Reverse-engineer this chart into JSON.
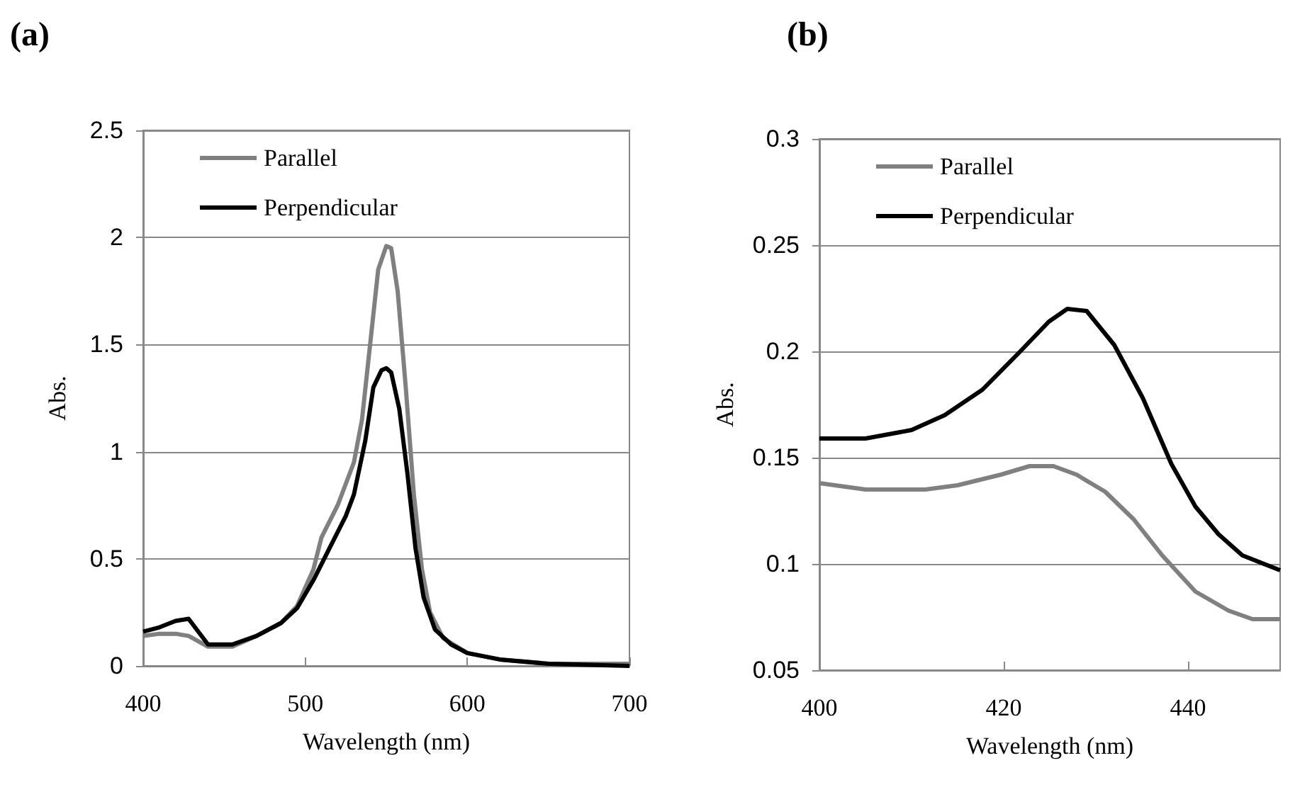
{
  "chart_data": [
    {
      "type": "line",
      "title": "(a)",
      "xlabel": "Wavelength (nm)",
      "ylabel": "Abs.",
      "xlim": [
        400,
        700
      ],
      "xticks": [
        400,
        500,
        600,
        700
      ],
      "ylim": [
        0,
        2.5
      ],
      "yticks": [
        0,
        0.5,
        1,
        1.5,
        2,
        2.5
      ],
      "grid": "y",
      "legend": "top left",
      "marker": "none",
      "line_style": "solid",
      "series": [
        {
          "name": "Parallel",
          "color": "#808080",
          "x": [
            400,
            410,
            420,
            428,
            440,
            455,
            470,
            485,
            495,
            505,
            510,
            520,
            530,
            535,
            540,
            545,
            550,
            553,
            557,
            562,
            567,
            572,
            577,
            585,
            600,
            620,
            650,
            700
          ],
          "values": [
            0.14,
            0.15,
            0.15,
            0.14,
            0.09,
            0.09,
            0.14,
            0.2,
            0.28,
            0.45,
            0.6,
            0.75,
            0.95,
            1.15,
            1.5,
            1.85,
            1.96,
            1.95,
            1.75,
            1.3,
            0.8,
            0.45,
            0.25,
            0.13,
            0.06,
            0.03,
            0.01,
            0.01
          ]
        },
        {
          "name": "Perpendicular",
          "color": "#000000",
          "x": [
            400,
            410,
            420,
            428,
            440,
            455,
            470,
            485,
            495,
            505,
            515,
            525,
            530,
            537,
            542,
            547,
            550,
            553,
            558,
            563,
            568,
            573,
            580,
            590,
            600,
            620,
            650,
            700
          ],
          "values": [
            0.16,
            0.18,
            0.21,
            0.22,
            0.1,
            0.1,
            0.14,
            0.2,
            0.27,
            0.4,
            0.55,
            0.7,
            0.8,
            1.05,
            1.3,
            1.38,
            1.39,
            1.37,
            1.2,
            0.9,
            0.55,
            0.32,
            0.17,
            0.1,
            0.06,
            0.03,
            0.01,
            0
          ]
        }
      ]
    },
    {
      "type": "line",
      "title": "(b)",
      "xlabel": "Wavelength (nm)",
      "ylabel": "Abs.",
      "xlim": [
        400,
        450
      ],
      "xticks": [
        400,
        420,
        440
      ],
      "ylim": [
        0.05,
        0.3
      ],
      "yticks": [
        0.05,
        0.1,
        0.15,
        0.2,
        0.25,
        0.3
      ],
      "grid": "y",
      "legend": "top left",
      "marker": "none",
      "line_style": "solid",
      "series": [
        {
          "name": "Parallel",
          "color": "#808080",
          "x": [
            400,
            405,
            411.5,
            415,
            419.7,
            422.8,
            425.4,
            427.9,
            431,
            434.1,
            437.2,
            440.8,
            444.4,
            447,
            450
          ],
          "values": [
            0.138,
            0.135,
            0.135,
            0.137,
            0.142,
            0.146,
            0.146,
            0.142,
            0.134,
            0.121,
            0.104,
            0.087,
            0.078,
            0.074,
            0.074
          ]
        },
        {
          "name": "Perpendicular",
          "color": "#000000",
          "x": [
            400,
            405,
            410,
            413.6,
            417.7,
            421.8,
            424.9,
            426.9,
            429,
            432,
            435.1,
            438.2,
            440.8,
            443.3,
            445.9,
            450
          ],
          "values": [
            0.159,
            0.159,
            0.163,
            0.17,
            0.182,
            0.2,
            0.214,
            0.22,
            0.219,
            0.203,
            0.178,
            0.147,
            0.127,
            0.114,
            0.104,
            0.097
          ]
        }
      ]
    }
  ]
}
